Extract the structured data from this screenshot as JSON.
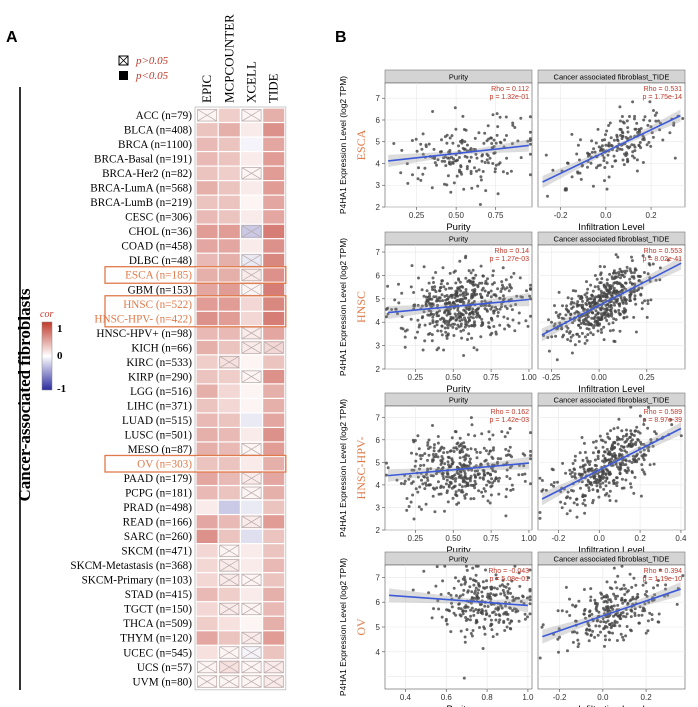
{
  "panel_a": {
    "label": "A",
    "y_title": "Cancer-associated fibroblasts",
    "legend": {
      "not_sig_label": "p>0.05",
      "sig_label": "p<0.05",
      "cor_title": "cor",
      "cor_ticks": [
        "1",
        "0",
        "-1"
      ]
    }
  },
  "panel_b": {
    "label": "B",
    "y_axis_label": "P4HA1 Expression Level (log2 TPM)"
  },
  "colors": {
    "positive": "#c0392b",
    "negative": "#2b2b9e",
    "highlight": "#e07a4a",
    "fit_line": "#3d5bd9",
    "strip": "#d4d4d4"
  },
  "chart_data": [
    {
      "type": "heatmap",
      "columns": [
        "EPIC",
        "MCPCOUNTER",
        "XCELL",
        "TIDE"
      ],
      "rows": [
        {
          "label": "ACC (n=79)",
          "values": [
            0.05,
            0.25,
            0.05,
            0.4
          ],
          "sig": [
            false,
            true,
            false,
            true
          ]
        },
        {
          "label": "BLCA (n=408)",
          "values": [
            0.3,
            0.4,
            0.1,
            0.55
          ],
          "sig": [
            true,
            true,
            true,
            true
          ]
        },
        {
          "label": "BRCA (n=1100)",
          "values": [
            0.35,
            0.3,
            -0.05,
            0.45
          ],
          "sig": [
            true,
            true,
            true,
            true
          ]
        },
        {
          "label": "BRCA-Basal (n=191)",
          "values": [
            0.35,
            0.3,
            0.1,
            0.5
          ],
          "sig": [
            true,
            true,
            true,
            true
          ]
        },
        {
          "label": "BRCA-Her2 (n=82)",
          "values": [
            0.3,
            0.25,
            0.05,
            0.5
          ],
          "sig": [
            true,
            true,
            false,
            true
          ]
        },
        {
          "label": "BRCA-LumA (n=568)",
          "values": [
            0.4,
            0.3,
            0.1,
            0.5
          ],
          "sig": [
            true,
            true,
            true,
            true
          ]
        },
        {
          "label": "BRCA-LumB (n=219)",
          "values": [
            0.3,
            0.3,
            0.05,
            0.45
          ],
          "sig": [
            true,
            true,
            true,
            true
          ]
        },
        {
          "label": "CESC (n=306)",
          "values": [
            0.35,
            0.3,
            0.1,
            0.45
          ],
          "sig": [
            true,
            true,
            true,
            true
          ]
        },
        {
          "label": "CHOL (n=36)",
          "values": [
            0.5,
            0.5,
            -0.25,
            0.65
          ],
          "sig": [
            true,
            true,
            false,
            true
          ]
        },
        {
          "label": "COAD (n=458)",
          "values": [
            0.45,
            0.45,
            0.1,
            0.55
          ],
          "sig": [
            true,
            true,
            true,
            true
          ]
        },
        {
          "label": "DLBC (n=48)",
          "values": [
            0.35,
            0.4,
            -0.1,
            0.6
          ],
          "sig": [
            true,
            true,
            false,
            true
          ]
        },
        {
          "label": "ESCA (n=185)",
          "values": [
            0.4,
            0.4,
            0.1,
            0.55
          ],
          "sig": [
            true,
            true,
            false,
            true
          ]
        },
        {
          "label": "GBM (n=153)",
          "values": [
            0.45,
            0.5,
            0.05,
            0.65
          ],
          "sig": [
            true,
            true,
            false,
            true
          ]
        },
        {
          "label": "HNSC (n=522)",
          "values": [
            0.5,
            0.5,
            0.2,
            0.6
          ],
          "sig": [
            true,
            true,
            true,
            true
          ]
        },
        {
          "label": "HNSC-HPV- (n=422)",
          "values": [
            0.55,
            0.5,
            0.2,
            0.65
          ],
          "sig": [
            true,
            true,
            true,
            true
          ]
        },
        {
          "label": "HNSC-HPV+ (n=98)",
          "values": [
            0.35,
            0.35,
            0.1,
            0.45
          ],
          "sig": [
            true,
            true,
            false,
            true
          ]
        },
        {
          "label": "KICH (n=66)",
          "values": [
            0.4,
            0.3,
            0.1,
            0.2
          ],
          "sig": [
            true,
            true,
            false,
            false
          ]
        },
        {
          "label": "KIRC (n=533)",
          "values": [
            0.25,
            0.15,
            0.05,
            0.3
          ],
          "sig": [
            true,
            false,
            true,
            true
          ]
        },
        {
          "label": "KIRP (n=290)",
          "values": [
            0.3,
            0.25,
            0.05,
            0.55
          ],
          "sig": [
            true,
            true,
            false,
            true
          ]
        },
        {
          "label": "LGG (n=516)",
          "values": [
            0.4,
            0.2,
            0.05,
            0.4
          ],
          "sig": [
            true,
            true,
            true,
            true
          ]
        },
        {
          "label": "LIHC (n=371)",
          "values": [
            0.3,
            0.2,
            0.05,
            0.4
          ],
          "sig": [
            true,
            true,
            true,
            true
          ]
        },
        {
          "label": "LUAD (n=515)",
          "values": [
            0.35,
            0.3,
            -0.1,
            0.45
          ],
          "sig": [
            true,
            true,
            true,
            true
          ]
        },
        {
          "label": "LUSC (n=501)",
          "values": [
            0.4,
            0.35,
            0.1,
            0.55
          ],
          "sig": [
            true,
            true,
            true,
            true
          ]
        },
        {
          "label": "MESO (n=87)",
          "values": [
            0.4,
            0.35,
            0.05,
            0.5
          ],
          "sig": [
            true,
            true,
            false,
            true
          ]
        },
        {
          "label": "OV (n=303)",
          "values": [
            0.3,
            0.3,
            0.1,
            0.4
          ],
          "sig": [
            true,
            true,
            true,
            true
          ]
        },
        {
          "label": "PAAD (n=179)",
          "values": [
            0.45,
            0.35,
            0.1,
            0.45
          ],
          "sig": [
            true,
            true,
            false,
            true
          ]
        },
        {
          "label": "PCPG (n=181)",
          "values": [
            0.35,
            0.3,
            0.05,
            0.4
          ],
          "sig": [
            true,
            true,
            false,
            true
          ]
        },
        {
          "label": "PRAD (n=498)",
          "values": [
            0.1,
            -0.25,
            -0.1,
            0.3
          ],
          "sig": [
            true,
            true,
            true,
            true
          ]
        },
        {
          "label": "READ (n=166)",
          "values": [
            0.45,
            0.35,
            0.1,
            0.5
          ],
          "sig": [
            true,
            true,
            false,
            true
          ]
        },
        {
          "label": "SARC (n=260)",
          "values": [
            0.55,
            0.3,
            -0.15,
            0.3
          ],
          "sig": [
            true,
            true,
            true,
            true
          ]
        },
        {
          "label": "SKCM (n=471)",
          "values": [
            0.2,
            0.05,
            0.1,
            0.3
          ],
          "sig": [
            true,
            false,
            true,
            true
          ]
        },
        {
          "label": "SKCM-Metastasis (n=368)",
          "values": [
            0.2,
            0.1,
            0.1,
            0.35
          ],
          "sig": [
            true,
            false,
            true,
            true
          ]
        },
        {
          "label": "SKCM-Primary (n=103)",
          "values": [
            0.2,
            0.1,
            0.05,
            0.3
          ],
          "sig": [
            true,
            false,
            false,
            true
          ]
        },
        {
          "label": "STAD (n=415)",
          "values": [
            0.35,
            0.25,
            0.1,
            0.4
          ],
          "sig": [
            true,
            true,
            true,
            true
          ]
        },
        {
          "label": "TGCT (n=150)",
          "values": [
            0.2,
            0.1,
            0.05,
            0.35
          ],
          "sig": [
            true,
            false,
            false,
            true
          ]
        },
        {
          "label": "THCA (n=509)",
          "values": [
            0.25,
            0.15,
            0.05,
            0.4
          ],
          "sig": [
            true,
            true,
            true,
            true
          ]
        },
        {
          "label": "THYM (n=120)",
          "values": [
            0.45,
            0.3,
            0.1,
            0.5
          ],
          "sig": [
            true,
            true,
            false,
            true
          ]
        },
        {
          "label": "UCEC (n=545)",
          "values": [
            0.15,
            0.05,
            -0.05,
            0.3
          ],
          "sig": [
            true,
            false,
            false,
            true
          ]
        },
        {
          "label": "UCS (n=57)",
          "values": [
            0.05,
            0.15,
            0.05,
            0.1
          ],
          "sig": [
            false,
            false,
            false,
            false
          ]
        },
        {
          "label": "UVM (n=80)",
          "values": [
            0.05,
            0.05,
            0.05,
            0.1
          ],
          "sig": [
            false,
            false,
            false,
            false
          ]
        }
      ],
      "highlighted_rows": [
        "ESCA (n=185)",
        "HNSC (n=522)",
        "HNSC-HPV- (n=422)",
        "OV (n=303)"
      ],
      "color_range": [
        -1,
        1
      ]
    },
    {
      "type": "scatter",
      "cancer": "ESCA",
      "panels": [
        {
          "title": "Purity",
          "stat_rho": "Rho = 0.112",
          "stat_p": "p = 1.32e-01",
          "xlabel": "Purity",
          "xlim": [
            0.05,
            0.98
          ],
          "ylim": [
            2.0,
            7.7
          ],
          "xticks": [
            "0.25",
            "0.50",
            "0.75"
          ],
          "yticks": [
            "2",
            "3",
            "4",
            "5",
            "6",
            "7"
          ],
          "n": 185,
          "x_center": 0.55,
          "x_spread": 0.2,
          "slope": 0.8,
          "intercept": 4.5,
          "noise": 0.9,
          "seed": 11
        },
        {
          "title": "Cancer associated fibroblast_TIDE",
          "stat_rho": "Rho = 0.531",
          "stat_p": "p = 1.75e-14",
          "xlabel": "Infiltration Level",
          "xlim": [
            -0.3,
            0.35
          ],
          "ylim": [
            2.0,
            7.7
          ],
          "xticks": [
            "-0.2",
            "0.0",
            "0.2"
          ],
          "yticks": [],
          "n": 185,
          "x_center": 0.05,
          "x_spread": 0.12,
          "slope": 5.0,
          "intercept": 4.8,
          "noise": 0.7,
          "seed": 12
        }
      ]
    },
    {
      "type": "scatter",
      "cancer": "HNSC",
      "panels": [
        {
          "title": "Purity",
          "stat_rho": "Rho = 0.14",
          "stat_p": "p = 1.27e-03",
          "xlabel": "Purity",
          "xlim": [
            0.05,
            1.02
          ],
          "ylim": [
            2.0,
            7.3
          ],
          "xticks": [
            "0.25",
            "0.50",
            "0.75",
            "1.00"
          ],
          "yticks": [
            "2",
            "3",
            "4",
            "5",
            "6",
            "7"
          ],
          "n": 500,
          "x_center": 0.55,
          "x_spread": 0.2,
          "slope": 0.6,
          "intercept": 4.7,
          "noise": 0.75,
          "seed": 21
        },
        {
          "title": "Cancer associated fibroblast_TIDE",
          "stat_rho": "Rho = 0.553",
          "stat_p": "p = 8.02e-41",
          "xlabel": "Infiltration Level",
          "xlim": [
            -0.32,
            0.45
          ],
          "ylim": [
            2.0,
            7.3
          ],
          "xticks": [
            "-0.25",
            "0.00",
            "0.25"
          ],
          "yticks": [],
          "n": 500,
          "x_center": 0.02,
          "x_spread": 0.13,
          "slope": 4.2,
          "intercept": 4.8,
          "noise": 0.65,
          "seed": 22
        }
      ]
    },
    {
      "type": "scatter",
      "cancer": "HNSC-HPV-",
      "panels": [
        {
          "title": "Purity",
          "stat_rho": "Rho = 0.162",
          "stat_p": "p = 1.42e-03",
          "xlabel": "Purity",
          "xlim": [
            0.05,
            1.02
          ],
          "ylim": [
            2.0,
            7.5
          ],
          "xticks": [
            "0.25",
            "0.50",
            "0.75",
            "1.00"
          ],
          "yticks": [
            "2",
            "3",
            "4",
            "5",
            "6",
            "7"
          ],
          "n": 400,
          "x_center": 0.55,
          "x_spread": 0.2,
          "slope": 0.6,
          "intercept": 4.7,
          "noise": 0.75,
          "seed": 31
        },
        {
          "title": "Cancer associated fibroblast_TIDE",
          "stat_rho": "Rho = 0.589",
          "stat_p": "p = 8.97e-39",
          "xlabel": "Infiltration Level",
          "xlim": [
            -0.3,
            0.42
          ],
          "ylim": [
            2.0,
            7.5
          ],
          "xticks": [
            "-0.2",
            "0.0",
            "0.2",
            "0.4"
          ],
          "yticks": [],
          "n": 400,
          "x_center": 0.03,
          "x_spread": 0.12,
          "slope": 4.6,
          "intercept": 4.8,
          "noise": 0.65,
          "seed": 32
        }
      ]
    },
    {
      "type": "scatter",
      "cancer": "OV",
      "panels": [
        {
          "title": "Purity",
          "stat_rho": "Rho = -0.043",
          "stat_p": "p = 5.08e-01",
          "xlabel": "Purity",
          "xlim": [
            0.3,
            1.02
          ],
          "ylim": [
            2.5,
            7.5
          ],
          "xticks": [
            "0.4",
            "0.6",
            "0.8",
            "1.0"
          ],
          "yticks": [
            "4",
            "5",
            "6",
            "7"
          ],
          "n": 260,
          "x_center": 0.78,
          "x_spread": 0.12,
          "slope": -0.6,
          "intercept": 6.0,
          "noise": 0.7,
          "seed": 41
        },
        {
          "title": "Cancer associated fibroblast_TIDE",
          "stat_rho": "Rho = 0.394",
          "stat_p": "p = 1.19e-10",
          "xlabel": "Infiltration Level",
          "xlim": [
            -0.3,
            0.38
          ],
          "ylim": [
            2.5,
            7.5
          ],
          "xticks": [
            "-0.2",
            "0.0",
            "0.2"
          ],
          "yticks": [],
          "n": 260,
          "x_center": 0.05,
          "x_spread": 0.12,
          "slope": 3.0,
          "intercept": 5.6,
          "noise": 0.6,
          "seed": 42
        }
      ]
    }
  ]
}
